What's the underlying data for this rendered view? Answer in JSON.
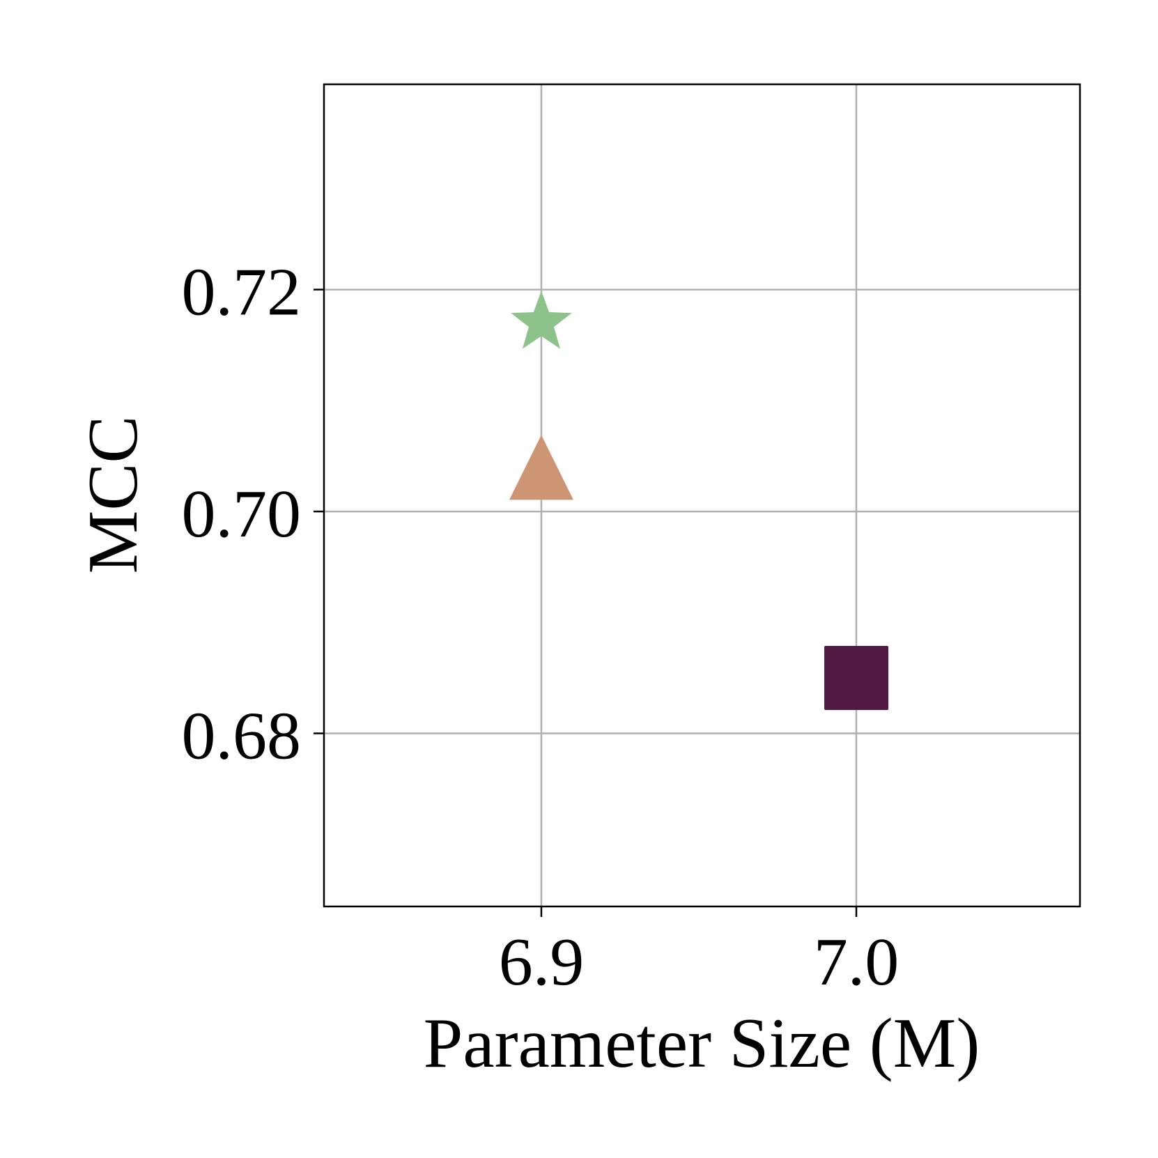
{
  "chart_data": {
    "type": "scatter",
    "title": "",
    "xlabel": "Parameter Size (M)",
    "ylabel": "MCC",
    "xlim": [
      6.831,
      7.071
    ],
    "ylim": [
      0.6644,
      0.7385
    ],
    "grid": true,
    "legend": "none",
    "x_ticks": [
      {
        "value": 6.9,
        "label": "6.9"
      },
      {
        "value": 7.0,
        "label": "7.0"
      }
    ],
    "y_ticks": [
      {
        "value": 0.68,
        "label": "0.68"
      },
      {
        "value": 0.7,
        "label": "0.70"
      },
      {
        "value": 0.72,
        "label": "0.72"
      }
    ],
    "points": [
      {
        "x": 6.9,
        "y": 0.717,
        "marker": "star",
        "color": "#8dc38a"
      },
      {
        "x": 6.9,
        "y": 0.703,
        "marker": "triangle",
        "color": "#cd9574"
      },
      {
        "x": 7.0,
        "y": 0.685,
        "marker": "square",
        "color": "#501843"
      }
    ]
  }
}
